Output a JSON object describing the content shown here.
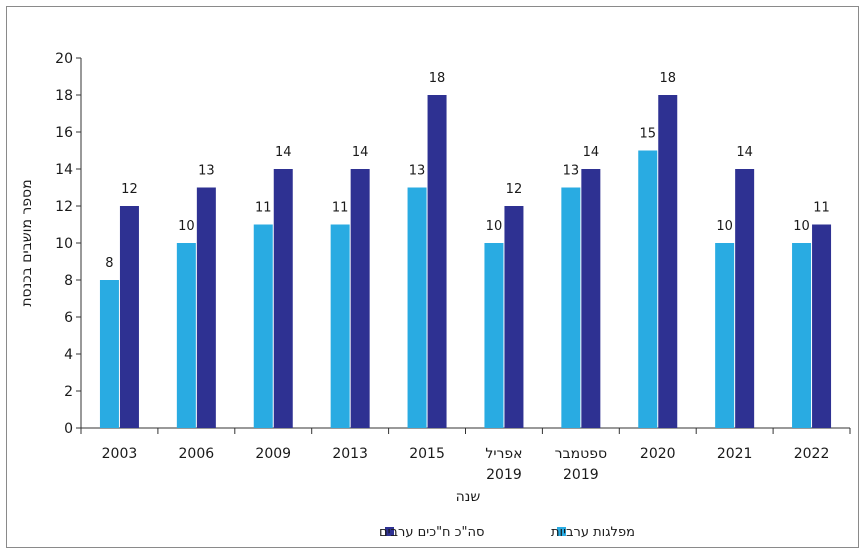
{
  "chart_data": {
    "type": "bar",
    "title": "",
    "xlabel": "שנה",
    "ylabel": "מספר מושבים בכנסת",
    "ylim": [
      0,
      20
    ],
    "yticks": [
      0,
      2,
      4,
      6,
      8,
      10,
      12,
      14,
      16,
      18,
      20
    ],
    "grid": false,
    "legend_position": "bottom-center",
    "categories": [
      [
        "2003"
      ],
      [
        "2006"
      ],
      [
        "2009"
      ],
      [
        "2013"
      ],
      [
        "2015"
      ],
      [
        "אפריל",
        "2019"
      ],
      [
        "ספטמבר",
        "2019"
      ],
      [
        "2020"
      ],
      [
        "2021"
      ],
      [
        "2022"
      ]
    ],
    "series": [
      {
        "name": "מפלגות ערביות",
        "color": "#29abe2",
        "values": [
          8,
          10,
          11,
          11,
          13,
          10,
          13,
          15,
          10,
          10
        ]
      },
      {
        "name": "סה\"כ ח\"כים ערבים",
        "color": "#2e3192",
        "values": [
          12,
          13,
          14,
          14,
          18,
          12,
          14,
          18,
          14,
          11
        ]
      }
    ]
  }
}
